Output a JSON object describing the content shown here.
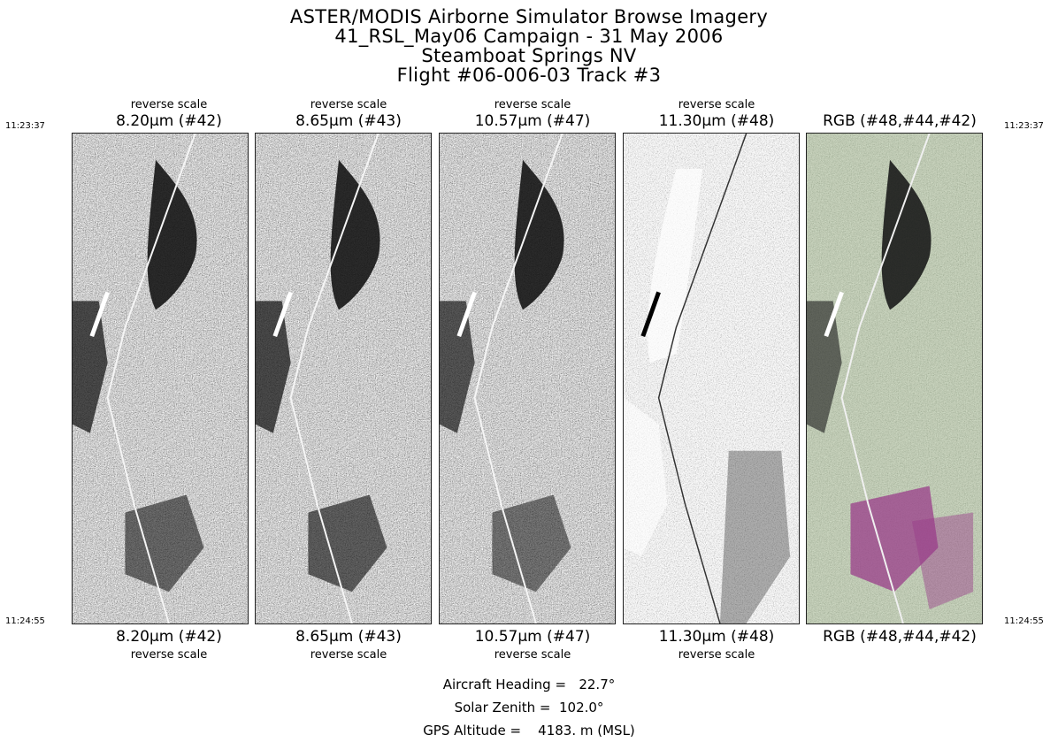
{
  "title": {
    "line1": "ASTER/MODIS Airborne Simulator Browse Imagery",
    "line2": "41_RSL_May06 Campaign - 31 May 2006",
    "line3": "Steamboat Springs NV",
    "line4": "Flight #06-006-03 Track #3"
  },
  "times": {
    "start": "11:23:37",
    "end": "11:24:55"
  },
  "panels": [
    {
      "band": "8.20μm (#42)",
      "note": "reverse scale",
      "kind": "gray"
    },
    {
      "band": "8.65μm (#43)",
      "note": "reverse scale",
      "kind": "gray"
    },
    {
      "band": "10.57μm (#47)",
      "note": "reverse scale",
      "kind": "gray"
    },
    {
      "band": "11.30μm (#48)",
      "note": "reverse scale",
      "kind": "light"
    },
    {
      "band": "RGB (#48,#44,#42)",
      "note": "",
      "kind": "rgb"
    }
  ],
  "footer": {
    "heading": "Aircraft Heading =   22.7°",
    "zenith": "Solar Zenith =  102.0°",
    "altitude": "GPS Altitude =    4183. m (MSL)"
  },
  "colors": {
    "background": "#ffffff",
    "text": "#000000",
    "rgb_tint": "#b7c9a6",
    "rgb_magenta": "#9a3c8a"
  }
}
